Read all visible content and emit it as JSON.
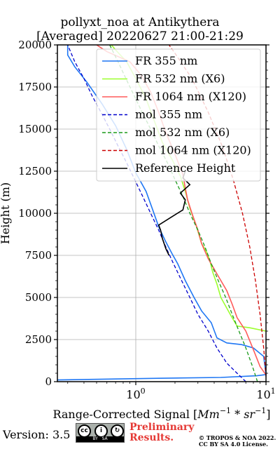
{
  "chart_data": {
    "type": "line",
    "title": "pollyxt_noa at Antikythera",
    "subtitle": "[Averaged] 20220627 21:00-21:29",
    "xlabel": "Range-Corrected Signal [$Mm^{-1}*sr^{-1}$]",
    "xlabel_parts": {
      "prefix": "Range-Corrected Signal [",
      "math1": "Mm",
      "sup1": "−1",
      "op": " * ",
      "math2": "sr",
      "sup2": "−1",
      "suffix": "]"
    },
    "ylabel": "Height (m)",
    "xscale": "log",
    "xlim": [
      0.25,
      10
    ],
    "ylim": [
      0,
      20000
    ],
    "x_ticks": [
      {
        "value": 1,
        "base": "10",
        "exp": "0"
      },
      {
        "value": 10,
        "base": "10",
        "exp": "1"
      }
    ],
    "y_ticks": [
      "0",
      "2500",
      "5000",
      "7500",
      "10000",
      "12500",
      "15000",
      "17500",
      "20000"
    ],
    "grid": true,
    "legend_position": "top-right",
    "series": [
      {
        "name": "FR 355 nm",
        "color": "#1f77f4",
        "style": "solid",
        "points": [
          [
            0.25,
            100
          ],
          [
            1.5,
            200
          ],
          [
            4.5,
            250
          ],
          [
            8.5,
            350
          ],
          [
            10,
            420
          ],
          [
            9.6,
            1500
          ],
          [
            8,
            2000
          ],
          [
            6.5,
            2200
          ],
          [
            5,
            2300
          ],
          [
            4.2,
            2600
          ],
          [
            3.8,
            3500
          ],
          [
            3.2,
            4200
          ],
          [
            2.8,
            5000
          ],
          [
            2.4,
            6000
          ],
          [
            2.1,
            7000
          ],
          [
            1.9,
            7600
          ],
          [
            1.7,
            8300
          ],
          [
            1.5,
            9200
          ],
          [
            1.35,
            10200
          ],
          [
            1.2,
            11300
          ],
          [
            1.0,
            12400
          ],
          [
            0.85,
            13800
          ],
          [
            0.7,
            15200
          ],
          [
            0.55,
            16500
          ],
          [
            0.42,
            17800
          ],
          [
            0.34,
            18700
          ],
          [
            0.3,
            19400
          ],
          [
            0.3,
            20000
          ]
        ]
      },
      {
        "name": "FR 532 nm (X6)",
        "color": "#9cff2e",
        "style": "solid",
        "points": [
          [
            10,
            3000
          ],
          [
            7.5,
            3200
          ],
          [
            6.0,
            3300
          ],
          [
            5.4,
            3900
          ],
          [
            4.5,
            5000
          ],
          [
            4.2,
            5800
          ],
          [
            3.9,
            6500
          ],
          [
            3.7,
            7200
          ],
          [
            3.5,
            7700
          ],
          [
            3.2,
            8200
          ],
          [
            2.9,
            9300
          ],
          [
            2.6,
            10300
          ],
          [
            2.4,
            11300
          ],
          [
            2.2,
            12200
          ],
          [
            1.9,
            13200
          ],
          [
            1.6,
            14200
          ],
          [
            1.4,
            15400
          ],
          [
            1.2,
            16800
          ],
          [
            1.0,
            18000
          ],
          [
            0.85,
            19000
          ],
          [
            0.7,
            19700
          ],
          [
            0.65,
            20000
          ]
        ]
      },
      {
        "name": "FR 1064 nm (X120)",
        "color": "#ff5a5a",
        "style": "solid",
        "points": [
          [
            10,
            400
          ],
          [
            9,
            900
          ],
          [
            8,
            1900
          ],
          [
            7,
            3000
          ],
          [
            6,
            3800
          ],
          [
            5.5,
            4600
          ],
          [
            5,
            5400
          ],
          [
            4.2,
            6400
          ],
          [
            3.6,
            7300
          ],
          [
            3.2,
            8200
          ],
          [
            3.0,
            9000
          ],
          [
            2.7,
            10000
          ],
          [
            2.5,
            10800
          ],
          [
            2.4,
            11500
          ],
          [
            2.3,
            12300
          ],
          [
            2.0,
            13500
          ],
          [
            1.7,
            14800
          ],
          [
            1.5,
            16000
          ],
          [
            1.3,
            17200
          ],
          [
            1.1,
            18200
          ],
          [
            0.9,
            19000
          ],
          [
            0.6,
            19600
          ],
          [
            0.5,
            20000
          ]
        ]
      },
      {
        "name": "mol 355 nm",
        "color": "#0000cc",
        "style": "dashed",
        "points": [
          [
            7,
            0
          ],
          [
            6,
            500
          ],
          [
            5.0,
            1100
          ],
          [
            4.2,
            2000
          ],
          [
            3.6,
            3000
          ],
          [
            3.0,
            4000
          ],
          [
            2.6,
            5000
          ],
          [
            2.25,
            6000
          ],
          [
            1.95,
            7000
          ],
          [
            1.7,
            8000
          ],
          [
            1.5,
            9000
          ],
          [
            1.3,
            10000
          ],
          [
            1.13,
            11000
          ],
          [
            0.98,
            12000
          ],
          [
            0.85,
            13000
          ],
          [
            0.73,
            14000
          ],
          [
            0.63,
            15000
          ],
          [
            0.54,
            16000
          ],
          [
            0.46,
            17000
          ],
          [
            0.4,
            18000
          ],
          [
            0.34,
            19000
          ],
          [
            0.3,
            20000
          ]
        ]
      },
      {
        "name": "mol 532 nm (X6)",
        "color": "#1a9a1a",
        "style": "dashed",
        "points": [
          [
            8.6,
            0
          ],
          [
            7.8,
            1000
          ],
          [
            7.0,
            2000
          ],
          [
            6.2,
            3000
          ],
          [
            5.5,
            4000
          ],
          [
            4.9,
            5000
          ],
          [
            4.3,
            6000
          ],
          [
            3.8,
            7000
          ],
          [
            3.4,
            8000
          ],
          [
            3.0,
            9000
          ],
          [
            2.6,
            10000
          ],
          [
            2.3,
            11000
          ],
          [
            2.0,
            12000
          ],
          [
            1.75,
            13000
          ],
          [
            1.5,
            14000
          ],
          [
            1.3,
            15000
          ],
          [
            1.12,
            16000
          ],
          [
            0.97,
            17000
          ],
          [
            0.84,
            18000
          ],
          [
            0.73,
            19000
          ],
          [
            0.63,
            20000
          ]
        ]
      },
      {
        "name": "mol 1064 nm (X120)",
        "color": "#cc0000",
        "style": "dashed",
        "points": [
          [
            10,
            300
          ],
          [
            9.6,
            2000
          ],
          [
            9.0,
            4000
          ],
          [
            8.3,
            6000
          ],
          [
            7.5,
            8000
          ],
          [
            6.6,
            10000
          ],
          [
            5.6,
            12000
          ],
          [
            4.6,
            14000
          ],
          [
            3.6,
            16000
          ],
          [
            2.7,
            18000
          ],
          [
            2.0,
            19500
          ],
          [
            1.8,
            20000
          ]
        ]
      },
      {
        "name": "Reference Height",
        "color": "#000000",
        "style": "solid",
        "points": [
          [
            1.8,
            7500
          ],
          [
            1.7,
            7900
          ],
          [
            1.6,
            8500
          ],
          [
            1.55,
            9000
          ],
          [
            1.5,
            9300
          ],
          [
            1.9,
            9800
          ],
          [
            2.3,
            10200
          ],
          [
            2.4,
            10800
          ],
          [
            2.2,
            11200
          ],
          [
            2.6,
            11700
          ],
          [
            2.3,
            12100
          ],
          [
            2.4,
            12500
          ]
        ]
      }
    ]
  },
  "footer": {
    "version": "Version: 3.5",
    "license_badge": [
      "BY",
      "SA"
    ],
    "preliminary": [
      "Preliminary",
      "Results."
    ],
    "copyright": [
      "© TROPOS & NOA 2022.",
      "CC BY SA 4.0 License."
    ]
  }
}
